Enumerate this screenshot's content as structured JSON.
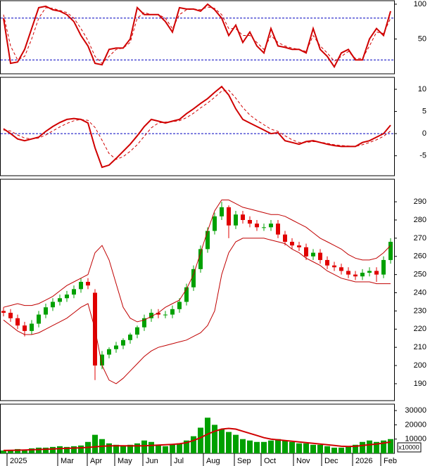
{
  "chart_data": [
    {
      "type": "line",
      "xlim": [
        -0.5,
        55.5
      ],
      "ylim": [
        0,
        105
      ],
      "yticks": [
        100,
        50
      ],
      "hlines": [
        80,
        20
      ],
      "hline_color": "#0000c0",
      "series": [
        {
          "color": "#d00000",
          "style": "solid",
          "values": [
            80,
            15,
            17,
            35,
            65,
            95,
            97,
            92,
            90,
            85,
            75,
            55,
            40,
            15,
            13,
            35,
            37,
            37,
            50,
            95,
            85,
            85,
            85,
            75,
            60,
            95,
            93,
            93,
            90,
            100,
            92,
            80,
            55,
            70,
            45,
            60,
            40,
            30,
            65,
            40,
            38,
            35,
            35,
            30,
            65,
            35,
            25,
            10,
            30,
            35,
            20,
            20,
            50,
            65,
            55,
            90
          ]
        },
        {
          "color": "#d00000",
          "style": "dashed",
          "values": [
            85,
            40,
            20,
            25,
            50,
            80,
            95,
            94,
            91,
            88,
            80,
            65,
            48,
            25,
            15,
            25,
            35,
            37,
            45,
            80,
            88,
            85,
            85,
            80,
            65,
            85,
            92,
            93,
            92,
            96,
            94,
            85,
            65,
            65,
            55,
            55,
            45,
            35,
            55,
            45,
            40,
            37,
            35,
            32,
            55,
            40,
            30,
            18,
            25,
            32,
            22,
            22,
            40,
            60,
            58,
            80
          ]
        }
      ]
    },
    {
      "type": "line",
      "xlim": [
        -0.5,
        55.5
      ],
      "ylim": [
        -9.5,
        12.7
      ],
      "yticks": [
        10,
        5,
        0,
        -5
      ],
      "hlines": [
        0
      ],
      "hline_color": "#0000c0",
      "series": [
        {
          "color": "#d00000",
          "style": "solid",
          "values": [
            1.1,
            0,
            -1.2,
            -1.6,
            -1.2,
            -0.8,
            0.5,
            1.6,
            2.5,
            3.2,
            3.4,
            3.2,
            2.4,
            -3.2,
            -7.6,
            -7.1,
            -5.6,
            -4,
            -2.4,
            -0.5,
            1.6,
            3.2,
            2.8,
            2.4,
            2.8,
            3.2,
            4.5,
            5.6,
            6.8,
            7.9,
            9.3,
            10.6,
            8.7,
            5.6,
            3.2,
            2.4,
            1.6,
            0.8,
            0,
            0.2,
            -1.6,
            -2,
            -2.4,
            -1.8,
            -1.6,
            -2,
            -2.4,
            -2.7,
            -2.9,
            -2.9,
            -2.9,
            -2,
            -1.6,
            -0.8,
            0,
            1.9
          ]
        },
        {
          "color": "#d00000",
          "style": "dashed",
          "values": [
            0.8,
            0.6,
            -0.3,
            -1,
            -1.2,
            -1,
            -0.3,
            0.6,
            1.5,
            2.3,
            2.9,
            3.2,
            3,
            1.4,
            -1.5,
            -4.5,
            -5.8,
            -5.2,
            -4,
            -2.5,
            -0.6,
            1.3,
            2.4,
            2.6,
            2.7,
            2.9,
            3.6,
            4.6,
            5.8,
            6.9,
            8.2,
            9.6,
            9.8,
            8,
            5.9,
            4.2,
            3,
            2,
            1,
            0.5,
            -0.5,
            -1.4,
            -2,
            -2,
            -1.8,
            -1.9,
            -2.2,
            -2.5,
            -2.7,
            -2.8,
            -2.9,
            -2.5,
            -2,
            -1.4,
            -0.6,
            0.6
          ]
        }
      ]
    },
    {
      "type": "candlestick",
      "xlim": [
        -0.5,
        55.5
      ],
      "ylim": [
        180.7,
        302.4
      ],
      "yticks": [
        290,
        280,
        270,
        260,
        250,
        240,
        230,
        220,
        210,
        200,
        190
      ],
      "up_color": "#00a000",
      "down_color": "#e00000",
      "open": [
        230,
        229,
        226,
        222,
        219,
        223,
        228,
        232,
        235,
        237,
        239,
        242,
        246,
        240,
        200,
        206,
        209,
        211,
        214,
        217,
        221,
        226,
        229,
        228,
        228,
        231,
        235,
        243,
        253,
        264,
        274,
        282,
        287,
        277,
        283,
        280,
        278,
        276,
        276,
        278,
        272,
        268,
        266,
        265,
        260,
        262,
        258,
        255,
        254,
        252,
        250,
        249,
        251,
        252,
        250,
        258
      ],
      "high": [
        232,
        231,
        228,
        224,
        225,
        230,
        234,
        237,
        239,
        241,
        244,
        248,
        248,
        242,
        208,
        210,
        213,
        215,
        218,
        222,
        228,
        231,
        231,
        230,
        233,
        237,
        245,
        255,
        266,
        276,
        284,
        290,
        288,
        285,
        285,
        282,
        280,
        278,
        280,
        280,
        274,
        270,
        268,
        267,
        264,
        264,
        260,
        257,
        256,
        254,
        252,
        253,
        254,
        254,
        260,
        270
      ],
      "low": [
        227,
        224,
        220,
        216,
        217,
        221,
        226,
        230,
        233,
        235,
        237,
        240,
        242,
        192,
        198,
        204,
        207,
        209,
        212,
        215,
        219,
        224,
        226,
        226,
        226,
        229,
        233,
        241,
        251,
        262,
        272,
        280,
        270,
        275,
        278,
        276,
        274,
        274,
        274,
        270,
        266,
        264,
        263,
        258,
        258,
        256,
        253,
        252,
        250,
        248,
        247,
        247,
        249,
        246,
        248,
        256
      ],
      "close": [
        229,
        226,
        222,
        219,
        223,
        228,
        232,
        235,
        237,
        239,
        242,
        246,
        244,
        200,
        206,
        209,
        211,
        214,
        217,
        221,
        226,
        229,
        228,
        228,
        231,
        235,
        243,
        253,
        264,
        274,
        282,
        287,
        277,
        283,
        280,
        278,
        276,
        276,
        278,
        272,
        268,
        266,
        265,
        260,
        262,
        258,
        255,
        254,
        252,
        250,
        249,
        251,
        252,
        250,
        258,
        268
      ],
      "series": [
        {
          "color": "#c00000",
          "style": "thin",
          "values": [
            232,
            233,
            234,
            233,
            233,
            234,
            236,
            238,
            241,
            244,
            246,
            248,
            250,
            262,
            266,
            258,
            245,
            232,
            226,
            224,
            225,
            227,
            229,
            232,
            234,
            236,
            242,
            250,
            262,
            274,
            285,
            291,
            291,
            289,
            287,
            286,
            285,
            284,
            283,
            283,
            282,
            280,
            278,
            276,
            273,
            270,
            268,
            266,
            264,
            261,
            259,
            258,
            258,
            259,
            262,
            266
          ]
        },
        {
          "color": "#c00000",
          "style": "thin",
          "values": [
            225,
            222,
            219,
            217,
            217,
            218,
            220,
            222,
            224,
            226,
            229,
            232,
            234,
            220,
            200,
            192,
            190,
            193,
            197,
            201,
            205,
            208,
            210,
            211,
            212,
            213,
            214,
            216,
            218,
            222,
            230,
            250,
            262,
            268,
            270,
            270,
            270,
            270,
            269,
            268,
            267,
            264,
            262,
            259,
            257,
            255,
            252,
            250,
            248,
            247,
            246,
            246,
            246,
            245,
            245,
            245
          ]
        }
      ]
    },
    {
      "type": "bar",
      "xlim": [
        -0.5,
        55.5
      ],
      "ylim": [
        0,
        34500
      ],
      "yticks": [
        30000,
        20000,
        10000
      ],
      "color": "#00a000",
      "unit_label": "x10000",
      "values": [
        2000,
        2500,
        3000,
        2500,
        3500,
        4000,
        4000,
        4500,
        5000,
        4500,
        5000,
        5500,
        8000,
        13000,
        10000,
        7000,
        6000,
        5000,
        6000,
        7000,
        9000,
        8000,
        6000,
        5000,
        6000,
        7000,
        9000,
        12000,
        18000,
        25000,
        20000,
        17000,
        15000,
        13000,
        10000,
        9000,
        8000,
        8000,
        9000,
        10000,
        9000,
        8000,
        7000,
        7000,
        6000,
        6000,
        5000,
        4000,
        4000,
        5000,
        6000,
        8000,
        9000,
        8000,
        9000,
        10000
      ],
      "series": [
        {
          "color": "#d00000",
          "style": "solid",
          "values": [
            2000,
            2100,
            2200,
            2300,
            2500,
            2700,
            2900,
            3100,
            3300,
            3500,
            3700,
            3900,
            4200,
            4600,
            5000,
            5200,
            5300,
            5300,
            5200,
            5200,
            5300,
            5500,
            5800,
            6000,
            6300,
            6700,
            7500,
            9000,
            11000,
            13500,
            15500,
            17000,
            17500,
            17000,
            15500,
            14000,
            12500,
            11000,
            10000,
            9500,
            9000,
            8500,
            8000,
            7500,
            7000,
            6500,
            6000,
            5500,
            5000,
            4800,
            5000,
            5500,
            6000,
            6500,
            7200,
            8000
          ]
        }
      ],
      "xticks": [
        {
          "value": 0.5,
          "label": "2025"
        },
        {
          "value": 7.7,
          "label": "Mar"
        },
        {
          "value": 11.9,
          "label": "Apr"
        },
        {
          "value": 15.8,
          "label": "May"
        },
        {
          "value": 19.8,
          "label": "Jun"
        },
        {
          "value": 23.8,
          "label": "Jul"
        },
        {
          "value": 28.4,
          "label": "Aug"
        },
        {
          "value": 32.8,
          "label": "Sep"
        },
        {
          "value": 36.6,
          "label": "Oct"
        },
        {
          "value": 41.2,
          "label": "Nov"
        },
        {
          "value": 45.2,
          "label": "Dec"
        },
        {
          "value": 49.6,
          "label": "2026"
        },
        {
          "value": 53.6,
          "label": "Feb"
        }
      ]
    }
  ]
}
